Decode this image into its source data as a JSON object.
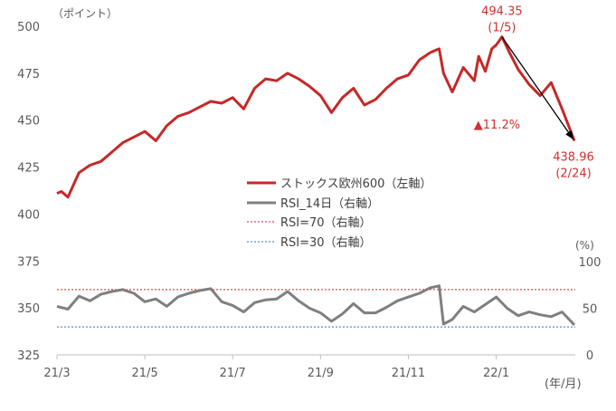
{
  "chart_data": {
    "type": "line",
    "title": "",
    "left_axis": {
      "unit_label": "（ポイント）",
      "ylim": [
        325,
        500
      ],
      "ticks": [
        325,
        350,
        375,
        400,
        425,
        450,
        475,
        500
      ]
    },
    "right_axis": {
      "unit_label": "(%)",
      "ylim": [
        0,
        100
      ],
      "ticks": [
        0,
        50,
        100
      ],
      "tick_labels": [
        "0",
        "50",
        "100"
      ]
    },
    "x_axis": {
      "label": "(年/月)",
      "ticks": [
        {
          "pos": 0,
          "label": "21/3"
        },
        {
          "pos": 2,
          "label": "21/5"
        },
        {
          "pos": 4,
          "label": "21/7"
        },
        {
          "pos": 6,
          "label": "21/9"
        },
        {
          "pos": 8,
          "label": "21/11"
        },
        {
          "pos": 10,
          "label": "22/1"
        }
      ],
      "xlim": [
        0,
        11.8
      ]
    },
    "series": [
      {
        "name": "ストックス欧州600（左軸）",
        "axis": "left",
        "color": "#c62828",
        "x": [
          0,
          0.1,
          0.25,
          0.5,
          0.75,
          1.0,
          1.25,
          1.5,
          1.75,
          2.0,
          2.25,
          2.5,
          2.75,
          3.0,
          3.25,
          3.5,
          3.75,
          4.0,
          4.25,
          4.5,
          4.75,
          5.0,
          5.25,
          5.5,
          5.75,
          6.0,
          6.25,
          6.5,
          6.75,
          7.0,
          7.25,
          7.5,
          7.75,
          8.0,
          8.25,
          8.5,
          8.7,
          8.8,
          9.0,
          9.25,
          9.5,
          9.6,
          9.75,
          9.9,
          10.0,
          10.13,
          10.3,
          10.5,
          10.75,
          11.0,
          11.25,
          11.5,
          11.78
        ],
        "values": [
          411,
          412,
          409,
          422,
          426,
          428,
          433,
          438,
          441,
          444,
          439,
          447,
          452,
          454,
          457,
          460,
          459,
          462,
          456,
          467,
          472,
          471,
          475,
          472,
          468,
          463,
          454,
          462,
          467,
          458,
          461,
          467,
          472,
          474,
          482,
          486,
          488,
          475,
          465,
          478,
          471,
          484,
          476,
          488,
          490,
          494.35,
          486,
          477,
          469,
          463,
          470,
          456,
          438.96
        ]
      },
      {
        "name": "RSI_14日（右軸）",
        "axis": "right",
        "color": "#7f7f7f",
        "x": [
          0,
          0.25,
          0.5,
          0.75,
          1.0,
          1.25,
          1.5,
          1.75,
          2.0,
          2.25,
          2.5,
          2.75,
          3.0,
          3.25,
          3.5,
          3.75,
          4.0,
          4.25,
          4.5,
          4.75,
          5.0,
          5.25,
          5.5,
          5.75,
          6.0,
          6.25,
          6.5,
          6.75,
          7.0,
          7.25,
          7.5,
          7.75,
          8.0,
          8.25,
          8.5,
          8.7,
          8.8,
          9.0,
          9.25,
          9.5,
          9.75,
          10.0,
          10.25,
          10.5,
          10.75,
          11.0,
          11.25,
          11.5,
          11.78
        ],
        "values": [
          52,
          49,
          63,
          58,
          65,
          68,
          70,
          66,
          57,
          60,
          52,
          62,
          66,
          69,
          71,
          57,
          53,
          46,
          56,
          59,
          60,
          68,
          58,
          50,
          45,
          36,
          44,
          55,
          45,
          45,
          51,
          58,
          62,
          66,
          72,
          74,
          33,
          38,
          52,
          46,
          54,
          62,
          50,
          42,
          46,
          43,
          41,
          46,
          32
        ]
      }
    ],
    "reference_lines": [
      {
        "name": "RSI=70（右軸）",
        "value": 70,
        "axis": "right",
        "color": "#c62828",
        "style": "dotted"
      },
      {
        "name": "RSI=30（右軸）",
        "value": 30,
        "axis": "right",
        "color": "#2e75b6",
        "style": "dotted"
      }
    ],
    "annotations": [
      {
        "text": "494.35",
        "sub": "(1/5)",
        "x": 10.13,
        "y": 494.35
      },
      {
        "text": "438.96",
        "sub": "(2/24)",
        "x": 11.78,
        "y": 438.96
      },
      {
        "text": "▲11.2%",
        "x": 10.8,
        "y": 446
      }
    ],
    "arrow": {
      "from": {
        "x": 10.13,
        "y": 494.35
      },
      "to": {
        "x": 11.75,
        "y": 440
      }
    },
    "legend": [
      {
        "label": "ストックス欧州600（左軸）",
        "style": "solid-red"
      },
      {
        "label": "RSI_14日（右軸）",
        "style": "solid-gray"
      },
      {
        "label": "RSI=70（右軸）",
        "style": "dotted-red"
      },
      {
        "label": "RSI=30（右軸）",
        "style": "dotted-blue"
      }
    ],
    "legend_placement": "center"
  }
}
